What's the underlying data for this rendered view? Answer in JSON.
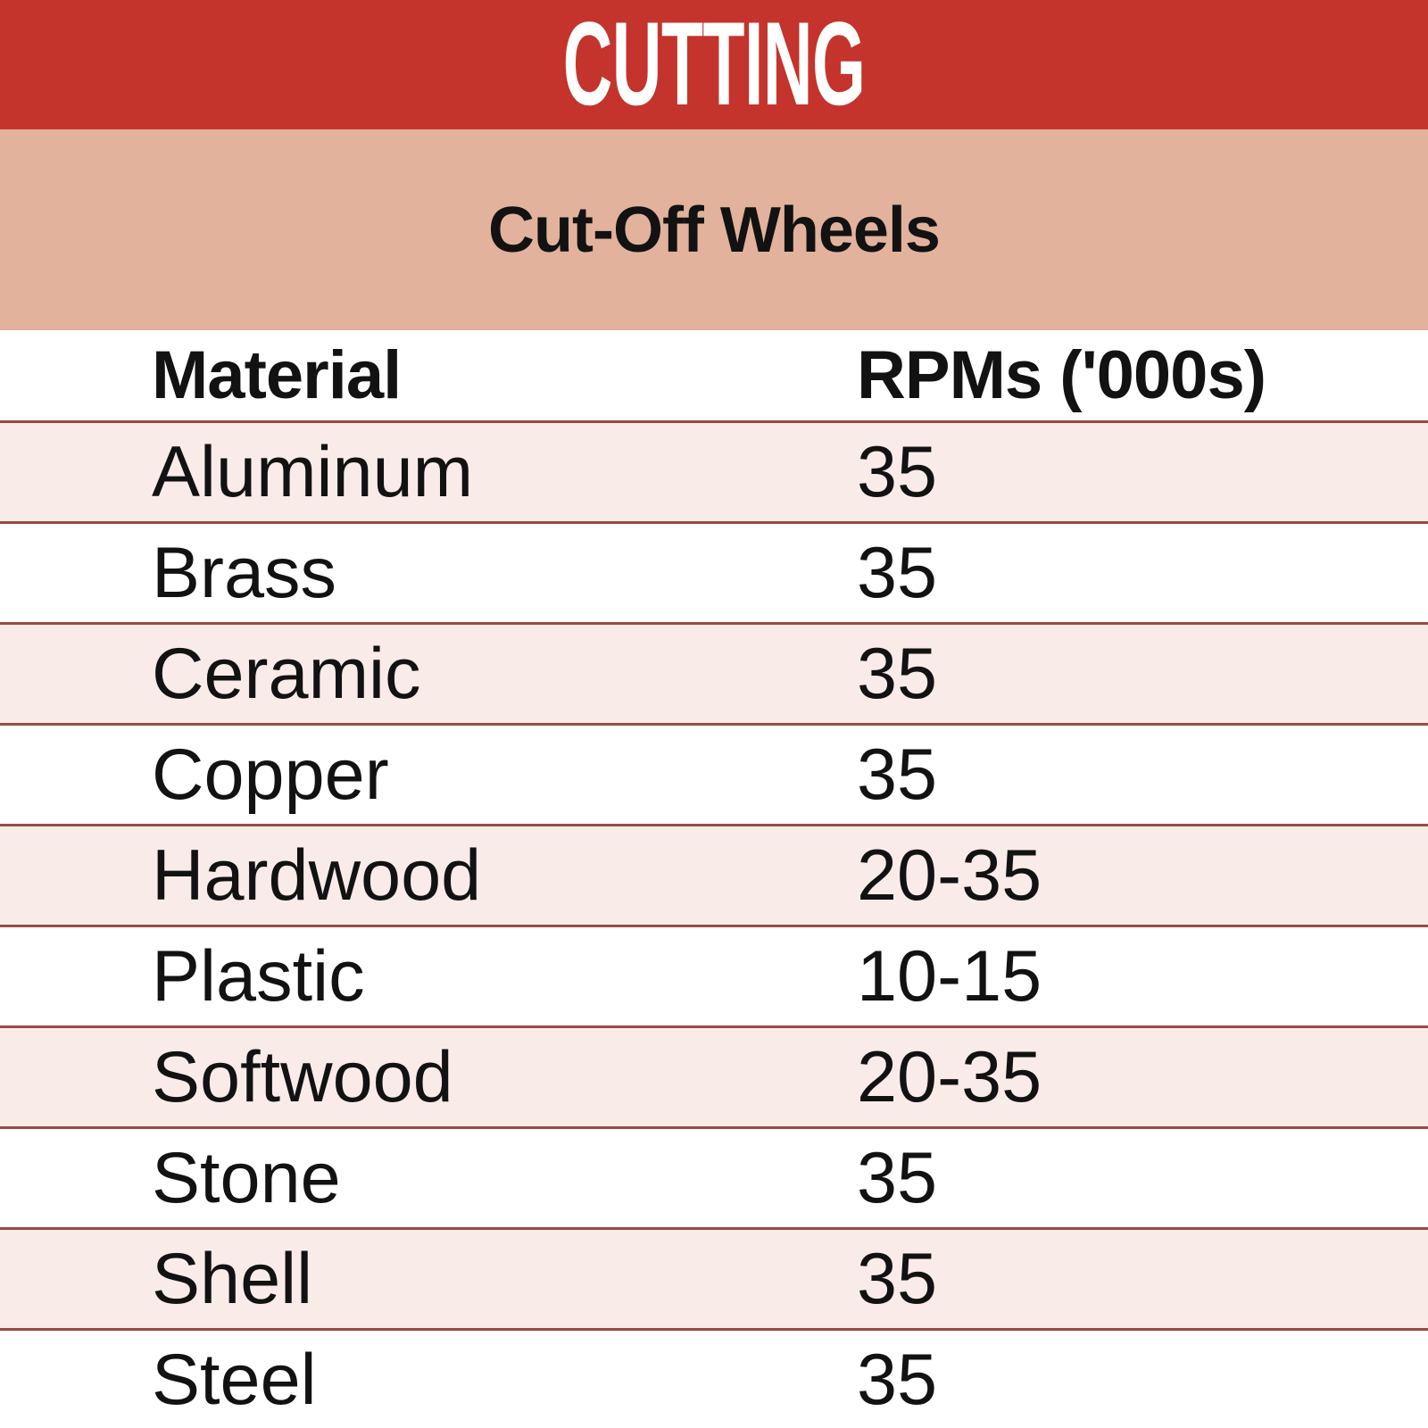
{
  "chart_data": {
    "type": "table",
    "title": "CUTTING",
    "subtitle": "Cut-Off Wheels",
    "columns": [
      "Material",
      "RPMs ('000s)"
    ],
    "rows": [
      {
        "material": "Aluminum",
        "rpm": "35"
      },
      {
        "material": "Brass",
        "rpm": "35"
      },
      {
        "material": "Ceramic",
        "rpm": "35"
      },
      {
        "material": "Copper",
        "rpm": "35"
      },
      {
        "material": "Hardwood",
        "rpm": "20-35"
      },
      {
        "material": "Plastic",
        "rpm": "10-15"
      },
      {
        "material": "Softwood",
        "rpm": "20-35"
      },
      {
        "material": "Stone",
        "rpm": "35"
      },
      {
        "material": "Shell",
        "rpm": "35"
      },
      {
        "material": "Steel",
        "rpm": "35"
      }
    ],
    "layout": {
      "stripe_pattern": "alternating rows starting pink",
      "legend": "none",
      "grid": "horizontal rules between rows"
    }
  },
  "colors": {
    "banner_red": "#C4342C",
    "banner_text": "#FFFFFF",
    "salmon": "#E2B29C",
    "stripe_pink": "#F9ECE8",
    "row_white": "#FFFFFF",
    "line_red": "#9B4A42",
    "text_dark": "#121212"
  }
}
